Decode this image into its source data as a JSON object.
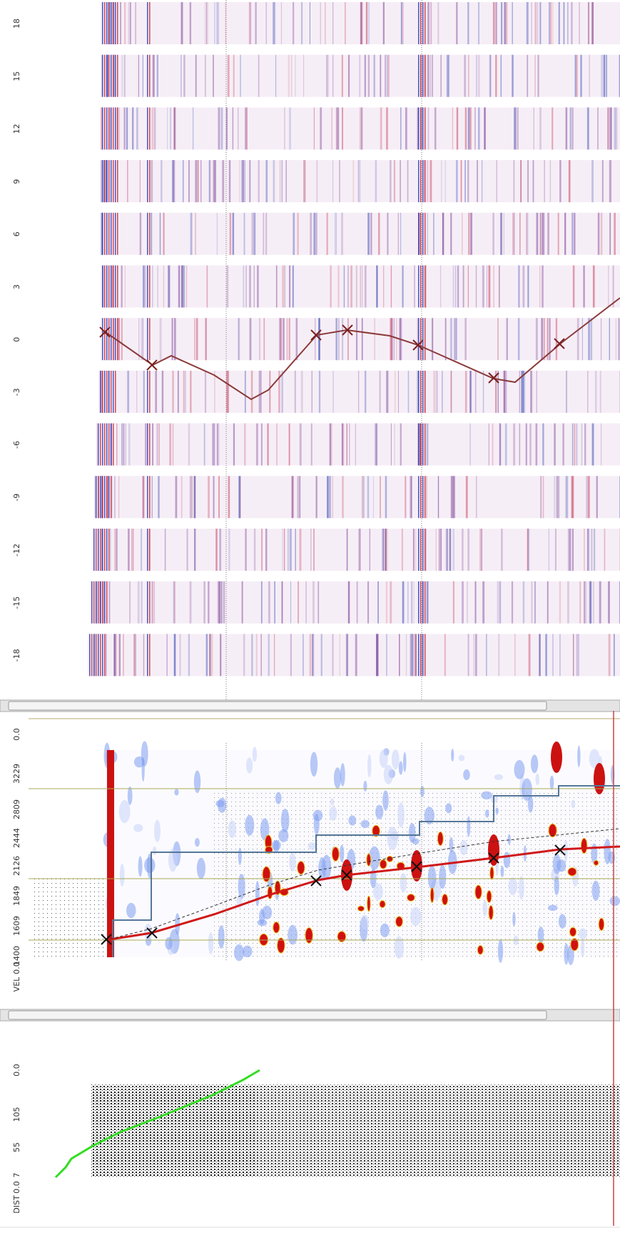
{
  "top_panel": {
    "axis_labels": [
      "18",
      "15",
      "12",
      "9",
      "6",
      "3",
      "0",
      "-3",
      "-6",
      "-9",
      "-12",
      "-15",
      "-18"
    ]
  },
  "velocity_panel": {
    "axis_labels": [
      "0.0",
      "3229",
      "2809",
      "2444",
      "2126",
      "1849",
      "1609",
      "1400",
      "0.0"
    ],
    "axis_title": "VEL"
  },
  "offset_panel": {
    "axis_labels": [
      "0.0",
      "105",
      "55",
      "7",
      "0.0"
    ],
    "axis_title": "DIST"
  }
}
